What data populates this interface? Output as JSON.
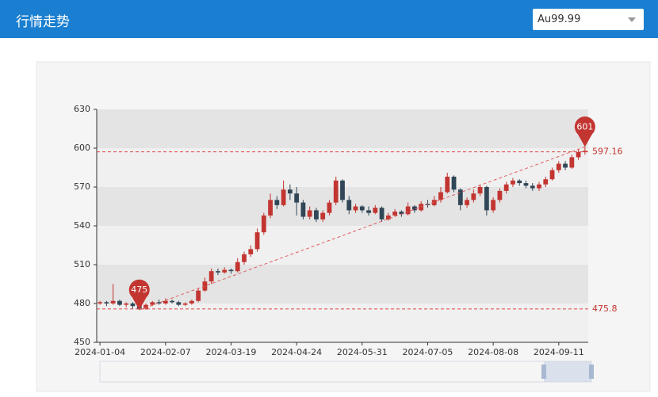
{
  "header": {
    "title": "行情走势",
    "select": "Au99.99"
  },
  "chart_data": {
    "type": "candlestick",
    "categories": [
      "2024-01-04",
      null,
      null,
      null,
      null,
      null,
      null,
      null,
      null,
      null,
      "2024-02-07",
      null,
      null,
      null,
      null,
      null,
      null,
      null,
      null,
      null,
      "2024-03-19",
      null,
      null,
      null,
      null,
      null,
      null,
      null,
      null,
      null,
      "2024-04-24",
      null,
      null,
      null,
      null,
      null,
      null,
      null,
      null,
      null,
      "2024-05-31",
      null,
      null,
      null,
      null,
      null,
      null,
      null,
      null,
      null,
      "2024-07-05",
      null,
      null,
      null,
      null,
      null,
      null,
      null,
      null,
      null,
      "2024-08-08",
      null,
      null,
      null,
      null,
      null,
      null,
      null,
      null,
      null,
      "2024-09-11",
      null,
      null,
      null,
      null
    ],
    "values": [
      [
        480,
        481,
        479,
        482
      ],
      [
        481,
        480,
        478,
        482
      ],
      [
        480,
        482,
        479,
        495
      ],
      [
        482,
        479,
        478,
        483
      ],
      [
        479,
        480,
        477,
        481
      ],
      [
        480,
        478,
        476,
        481
      ],
      [
        478,
        476,
        475,
        479
      ],
      [
        476,
        479,
        475,
        480
      ],
      [
        479,
        481,
        478,
        482
      ],
      [
        481,
        480,
        479,
        483
      ],
      [
        480,
        482,
        479,
        484
      ],
      [
        482,
        481,
        480,
        483
      ],
      [
        481,
        479,
        478,
        482
      ],
      [
        479,
        480,
        478,
        481
      ],
      [
        480,
        482,
        479,
        483
      ],
      [
        482,
        490,
        481,
        492
      ],
      [
        490,
        497,
        489,
        500
      ],
      [
        497,
        505,
        495,
        507
      ],
      [
        505,
        504,
        502,
        507
      ],
      [
        504,
        506,
        503,
        508
      ],
      [
        506,
        505,
        503,
        507
      ],
      [
        505,
        512,
        504,
        515
      ],
      [
        512,
        518,
        510,
        520
      ],
      [
        518,
        522,
        516,
        525
      ],
      [
        522,
        535,
        520,
        538
      ],
      [
        535,
        548,
        533,
        550
      ],
      [
        548,
        560,
        546,
        565
      ],
      [
        560,
        556,
        553,
        563
      ],
      [
        556,
        568,
        555,
        575
      ],
      [
        568,
        565,
        560,
        572
      ],
      [
        565,
        558,
        548,
        570
      ],
      [
        558,
        547,
        545,
        560
      ],
      [
        547,
        552,
        545,
        555
      ],
      [
        552,
        545,
        543,
        554
      ],
      [
        545,
        550,
        543,
        552
      ],
      [
        550,
        558,
        548,
        560
      ],
      [
        558,
        575,
        556,
        578
      ],
      [
        575,
        560,
        558,
        576
      ],
      [
        560,
        552,
        549,
        563
      ],
      [
        552,
        555,
        550,
        557
      ],
      [
        555,
        552,
        550,
        556
      ],
      [
        552,
        550,
        548,
        555
      ],
      [
        550,
        554,
        549,
        556
      ],
      [
        554,
        545,
        543,
        555
      ],
      [
        545,
        548,
        544,
        550
      ],
      [
        548,
        551,
        547,
        553
      ],
      [
        551,
        549,
        547,
        552
      ],
      [
        549,
        555,
        548,
        558
      ],
      [
        555,
        552,
        550,
        556
      ],
      [
        552,
        557,
        551,
        559
      ],
      [
        557,
        556,
        554,
        560
      ],
      [
        556,
        560,
        555,
        563
      ],
      [
        560,
        566,
        558,
        570
      ],
      [
        566,
        578,
        565,
        581
      ],
      [
        578,
        568,
        566,
        579
      ],
      [
        568,
        556,
        552,
        569
      ],
      [
        556,
        560,
        554,
        562
      ],
      [
        560,
        565,
        558,
        568
      ],
      [
        565,
        570,
        563,
        572
      ],
      [
        570,
        552,
        548,
        571
      ],
      [
        552,
        560,
        550,
        562
      ],
      [
        560,
        567,
        558,
        569
      ],
      [
        567,
        572,
        565,
        574
      ],
      [
        572,
        575,
        570,
        577
      ],
      [
        575,
        573,
        571,
        576
      ],
      [
        573,
        571,
        569,
        575
      ],
      [
        571,
        569,
        567,
        573
      ],
      [
        569,
        572,
        567,
        574
      ],
      [
        572,
        576,
        570,
        578
      ],
      [
        576,
        583,
        575,
        585
      ],
      [
        583,
        588,
        581,
        590
      ],
      [
        588,
        585,
        583,
        590
      ],
      [
        585,
        593,
        584,
        595
      ],
      [
        593,
        597,
        591,
        599
      ],
      [
        597,
        598,
        595,
        601
      ]
    ],
    "up_color": "#c23531",
    "down_color": "#314656",
    "ylim": [
      450,
      630
    ],
    "yticks": [
      450,
      480,
      510,
      540,
      570,
      600,
      630
    ],
    "mark_points": {
      "max": 601,
      "min": 475
    },
    "mark_lines": [
      597.16,
      475.8
    ]
  }
}
